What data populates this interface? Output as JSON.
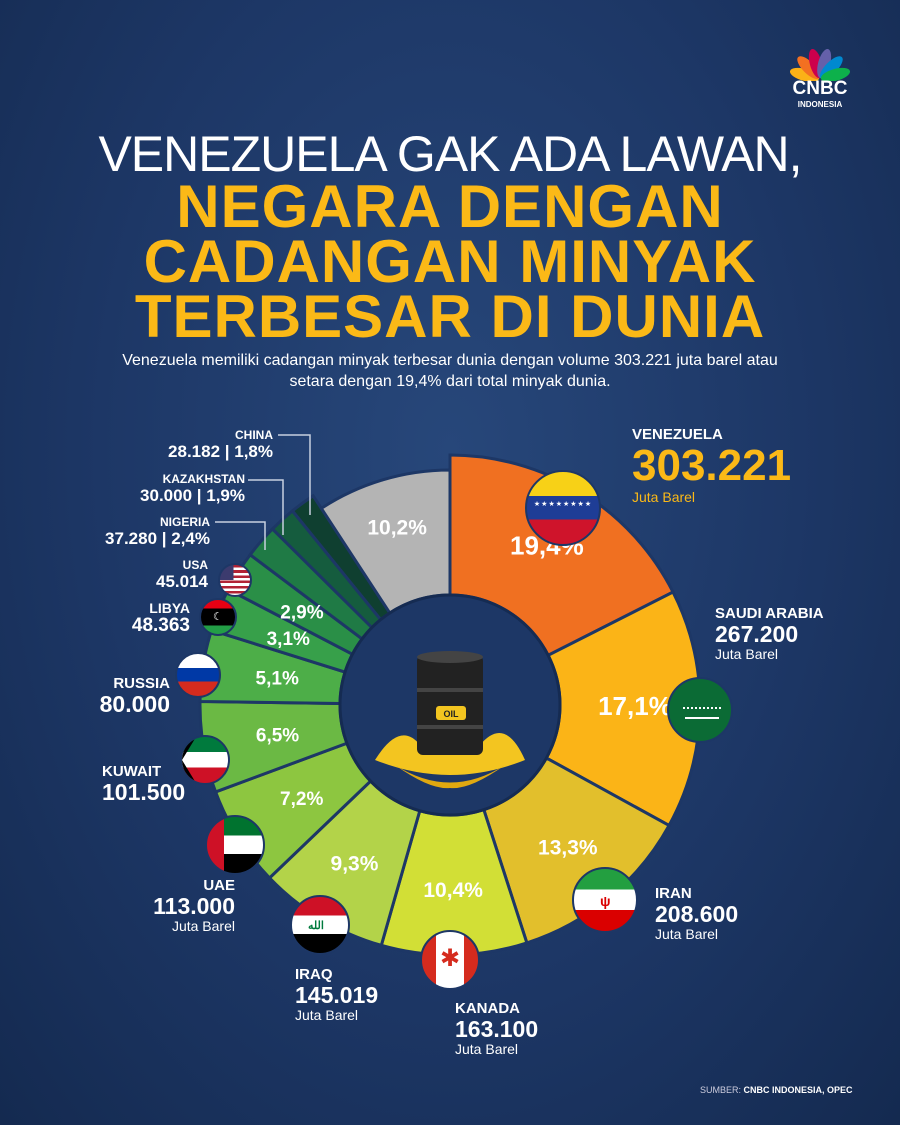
{
  "logo": {
    "word": "CNBC",
    "sub": "INDONESIA"
  },
  "title": {
    "line1": "VENEZUELA GAK ADA LAWAN,",
    "line2": "NEGARA DENGAN",
    "line3": "CADANGAN MINYAK",
    "line4": "TERBESAR DI DUNIA"
  },
  "description": "Venezuela memiliki cadangan minyak terbesar dunia dengan volume 303.221 juta barel atau setara dengan 19,4% dari total minyak dunia.",
  "center_label": "OIL",
  "chart_data": {
    "type": "pie",
    "style": "donut",
    "unit": "Juta Barel",
    "slices": [
      {
        "country": "VENEZUELA",
        "value": "303.221",
        "unit": "Juta Barel",
        "percent": 19.4,
        "label": "19,4%",
        "color": "#f07021"
      },
      {
        "country": "SAUDI ARABIA",
        "value": "267.200",
        "unit": "Juta Barel",
        "percent": 17.1,
        "label": "17,1%",
        "color": "#fbb417"
      },
      {
        "country": "IRAN",
        "value": "208.600",
        "unit": "Juta Barel",
        "percent": 13.3,
        "label": "13,3%",
        "color": "#e2bf2c"
      },
      {
        "country": "KANADA",
        "value": "163.100",
        "unit": "Juta Barel",
        "percent": 10.4,
        "label": "10,4%",
        "color": "#d2df36"
      },
      {
        "country": "IRAQ",
        "value": "145.019",
        "unit": "Juta Barel",
        "percent": 9.3,
        "label": "9,3%",
        "color": "#b3d349"
      },
      {
        "country": "UAE",
        "value": "113.000",
        "unit": "Juta Barel",
        "percent": 7.2,
        "label": "7,2%",
        "color": "#8dc640"
      },
      {
        "country": "KUWAIT",
        "value": "101.500",
        "percent": 6.5,
        "label": "6,5%",
        "color": "#6bb944"
      },
      {
        "country": "RUSSIA",
        "value": "80.000",
        "percent": 5.1,
        "label": "5,1%",
        "color": "#4dae48"
      },
      {
        "country": "LIBYA",
        "value": "48.363",
        "percent": 3.1,
        "label": "3,1%",
        "color": "#37a04a"
      },
      {
        "country": "USA",
        "value": "45.014",
        "percent": 2.9,
        "label": "2,9%",
        "color": "#2a8f47"
      },
      {
        "country": "NIGERIA",
        "value": "37.280",
        "percent": 2.4,
        "label": "2,4%",
        "color": "#1f7a45"
      },
      {
        "country": "KAZAKHSTAN",
        "value": "30.000",
        "percent": 1.9,
        "label": "1,9%",
        "color": "#155c3e"
      },
      {
        "country": "CHINA",
        "value": "28.182",
        "percent": 1.8,
        "label": "1,8%",
        "color": "#0f3f30"
      },
      {
        "country": "",
        "value": "",
        "percent": 10.2,
        "label": "10,2%",
        "color": "#b4b4b4"
      }
    ]
  },
  "source": {
    "prefix": "SUMBER:",
    "text": "CNBC INDONESIA, OPEC"
  },
  "colors": {
    "background": "#1d3766",
    "accent": "#fbb917"
  }
}
